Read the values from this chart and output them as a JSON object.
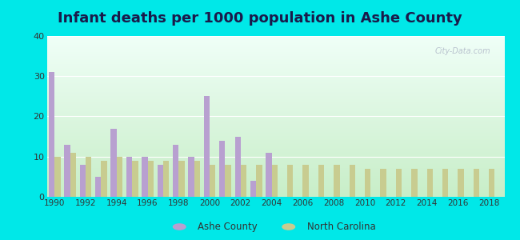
{
  "title": "Infant deaths per 1000 population in Ashe County",
  "years": [
    1990,
    1991,
    1992,
    1993,
    1994,
    1995,
    1996,
    1997,
    1998,
    1999,
    2000,
    2001,
    2002,
    2003,
    2004,
    2005,
    2006,
    2007,
    2008,
    2009,
    2010,
    2011,
    2012,
    2013,
    2014,
    2015,
    2016,
    2017,
    2018
  ],
  "ashe_county": [
    31,
    13,
    8,
    5,
    17,
    10,
    10,
    8,
    13,
    10,
    25,
    14,
    15,
    4,
    11,
    0,
    0,
    0,
    0,
    0,
    0,
    0,
    0,
    0,
    0,
    0,
    0,
    0,
    0
  ],
  "north_carolina": [
    10,
    11,
    10,
    9,
    10,
    9,
    9,
    9,
    9,
    9,
    8,
    8,
    8,
    8,
    8,
    8,
    8,
    8,
    8,
    8,
    7,
    7,
    7,
    7,
    7,
    7,
    7,
    7,
    7
  ],
  "ashe_color": "#b8a0d0",
  "nc_color": "#c8cc90",
  "ylim": [
    0,
    40
  ],
  "yticks": [
    0,
    10,
    20,
    30,
    40
  ],
  "xtick_years": [
    1990,
    1992,
    1994,
    1996,
    1998,
    2000,
    2002,
    2004,
    2006,
    2008,
    2010,
    2012,
    2014,
    2016,
    2018
  ],
  "outer_bg": "#00e8e8",
  "plot_bg_top": "#f0fff8",
  "plot_bg_bottom": "#c8eec8",
  "title_fontsize": 13,
  "title_color": "#1a1a4a",
  "watermark": "City-Data.com",
  "legend_label_ashe": "Ashe County",
  "legend_label_nc": "North Carolina"
}
